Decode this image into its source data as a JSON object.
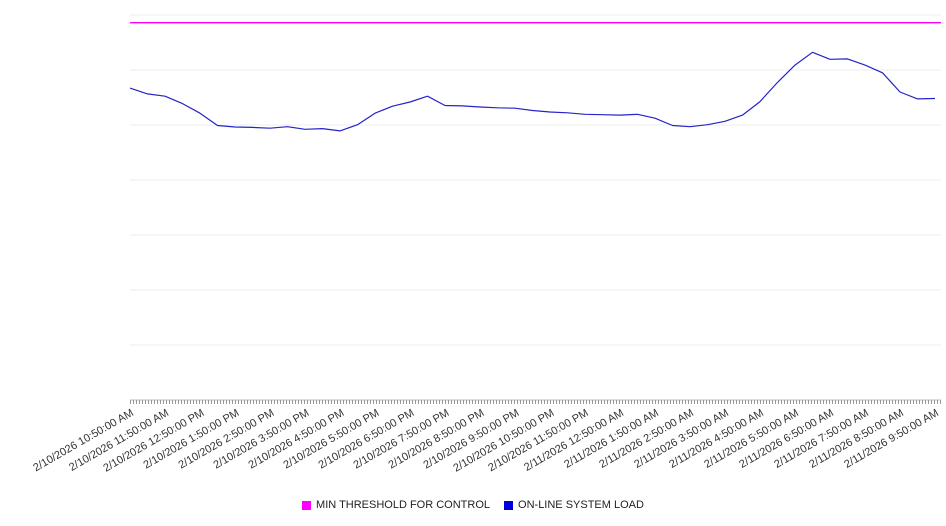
{
  "chart_data": {
    "type": "line",
    "title": "",
    "xlabel": "",
    "ylabel": "",
    "ylim": [
      0,
      100
    ],
    "grid": true,
    "legend_position": "bottom",
    "categories": [
      "2/10/2026 10:50:00 AM",
      "2/10/2026 11:50:00 AM",
      "2/10/2026 12:50:00 PM",
      "2/10/2026 1:50:00 PM",
      "2/10/2026 2:50:00 PM",
      "2/10/2026 3:50:00 PM",
      "2/10/2026 4:50:00 PM",
      "2/10/2026 5:50:00 PM",
      "2/10/2026 6:50:00 PM",
      "2/10/2026 7:50:00 PM",
      "2/10/2026 8:50:00 PM",
      "2/10/2026 9:50:00 PM",
      "2/10/2026 10:50:00 PM",
      "2/10/2026 11:50:00 PM",
      "2/11/2026 12:50:00 AM",
      "2/11/2026 1:50:00 AM",
      "2/11/2026 2:50:00 AM",
      "2/11/2026 3:50:00 AM",
      "2/11/2026 4:50:00 AM",
      "2/11/2026 5:50:00 AM",
      "2/11/2026 6:50:00 AM",
      "2/11/2026 7:50:00 AM",
      "2/11/2026 8:50:00 AM",
      "2/11/2026 9:50:00 AM"
    ],
    "series": [
      {
        "name": "MIN THRESHOLD FOR CONTROL",
        "type": "threshold",
        "color": "#ff00ff",
        "value": 98
      },
      {
        "name": "ON-LINE SYSTEM LOAD",
        "type": "line",
        "color": "#2424c8",
        "values": [
          81.0,
          79.5,
          78.9,
          77.0,
          74.5,
          71.3,
          70.9,
          70.8,
          70.6,
          71.0,
          70.3,
          70.5,
          69.9,
          71.5,
          74.5,
          76.3,
          77.4,
          78.9,
          76.5,
          76.4,
          76.1,
          75.9,
          75.8,
          75.2,
          74.8,
          74.6,
          74.2,
          74.1,
          74.0,
          74.2,
          73.2,
          71.3,
          71.0,
          71.5,
          72.4,
          74.0,
          77.5,
          82.5,
          87.0,
          90.3,
          88.5,
          88.6,
          87.0,
          85.0,
          80.0,
          78.2,
          78.3
        ]
      }
    ]
  },
  "legend": {
    "items": [
      {
        "label": "MIN THRESHOLD FOR CONTROL",
        "color": "#ff00ff"
      },
      {
        "label": "ON-LINE SYSTEM LOAD",
        "color": "#0000dd"
      }
    ]
  }
}
